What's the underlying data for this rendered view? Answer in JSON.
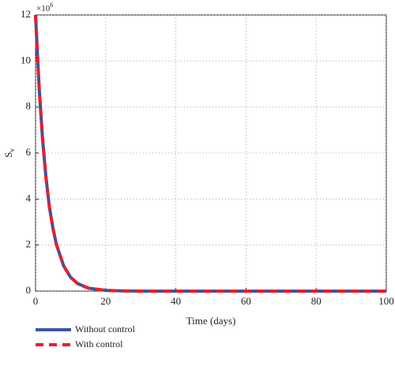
{
  "chart_data": {
    "type": "line",
    "xlabel": "Time (days)",
    "ylabel": "S",
    "ylabel_sub": "v",
    "y_multiplier": "×10",
    "y_multiplier_exp": "6",
    "x": [
      0,
      1,
      2,
      3,
      4,
      5,
      6,
      8,
      10,
      12,
      15,
      20,
      25,
      30,
      40,
      50,
      60,
      70,
      80,
      90,
      100
    ],
    "series": [
      {
        "name": "Without control",
        "color": "#3b53a4",
        "dashed": false,
        "values": [
          12,
          8.9,
          6.6,
          4.9,
          3.6,
          2.7,
          2.0,
          1.1,
          0.6,
          0.33,
          0.13,
          0.03,
          0.01,
          0,
          0,
          0,
          0,
          0,
          0,
          0,
          0
        ]
      },
      {
        "name": "With control",
        "color": "#ee1c25",
        "dashed": true,
        "values": [
          12,
          8.9,
          6.6,
          4.9,
          3.6,
          2.7,
          2.0,
          1.1,
          0.6,
          0.33,
          0.13,
          0.03,
          0.01,
          0,
          0,
          0,
          0,
          0,
          0,
          0,
          0
        ]
      }
    ],
    "xlim": [
      0,
      100
    ],
    "xticks": [
      0,
      20,
      40,
      60,
      80,
      100
    ],
    "ylim": [
      0,
      12
    ],
    "yticks": [
      0,
      2,
      4,
      6,
      8,
      10,
      12
    ],
    "grid": true,
    "legend": "bottom-left"
  }
}
